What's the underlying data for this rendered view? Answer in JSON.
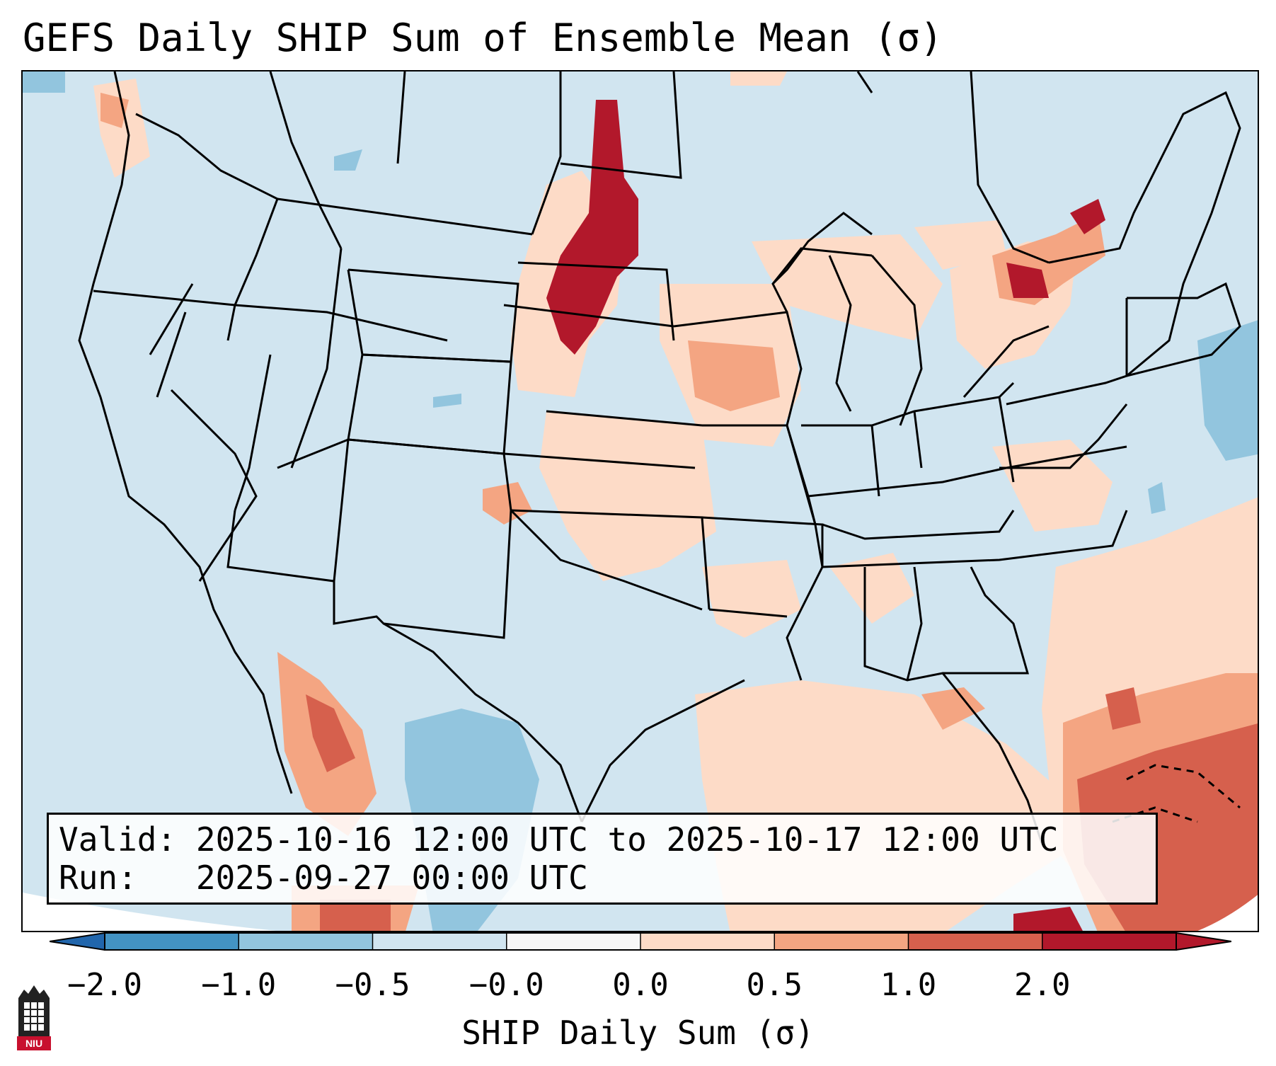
{
  "title": "GEFS Daily SHIP Sum of Ensemble Mean (σ)",
  "info": {
    "valid_label": "Valid:",
    "valid_value": "2025-10-16 12:00 UTC to 2025-10-17 12:00 UTC",
    "run_label": "Run:",
    "run_value": "2025-09-27 00:00 UTC"
  },
  "colorbar": {
    "label": "SHIP Daily Sum (σ)",
    "ticks": [
      "−2.0",
      "−1.0",
      "−0.5",
      "−0.0",
      "0.0",
      "0.5",
      "1.0",
      "2.0"
    ],
    "colors": [
      "#4393c3",
      "#92c5de",
      "#d1e5f0",
      "#f7f7f7",
      "#fddbc7",
      "#f4a582",
      "#d6604d",
      "#b2182b"
    ],
    "extend_low_color": "#2166ac",
    "extend_high_color": "#b2182b"
  },
  "logo": {
    "text": "NIU",
    "color": "#c8102e"
  },
  "map": {
    "region": "Contiguous United States",
    "background_color": "#d1e5f0"
  }
}
